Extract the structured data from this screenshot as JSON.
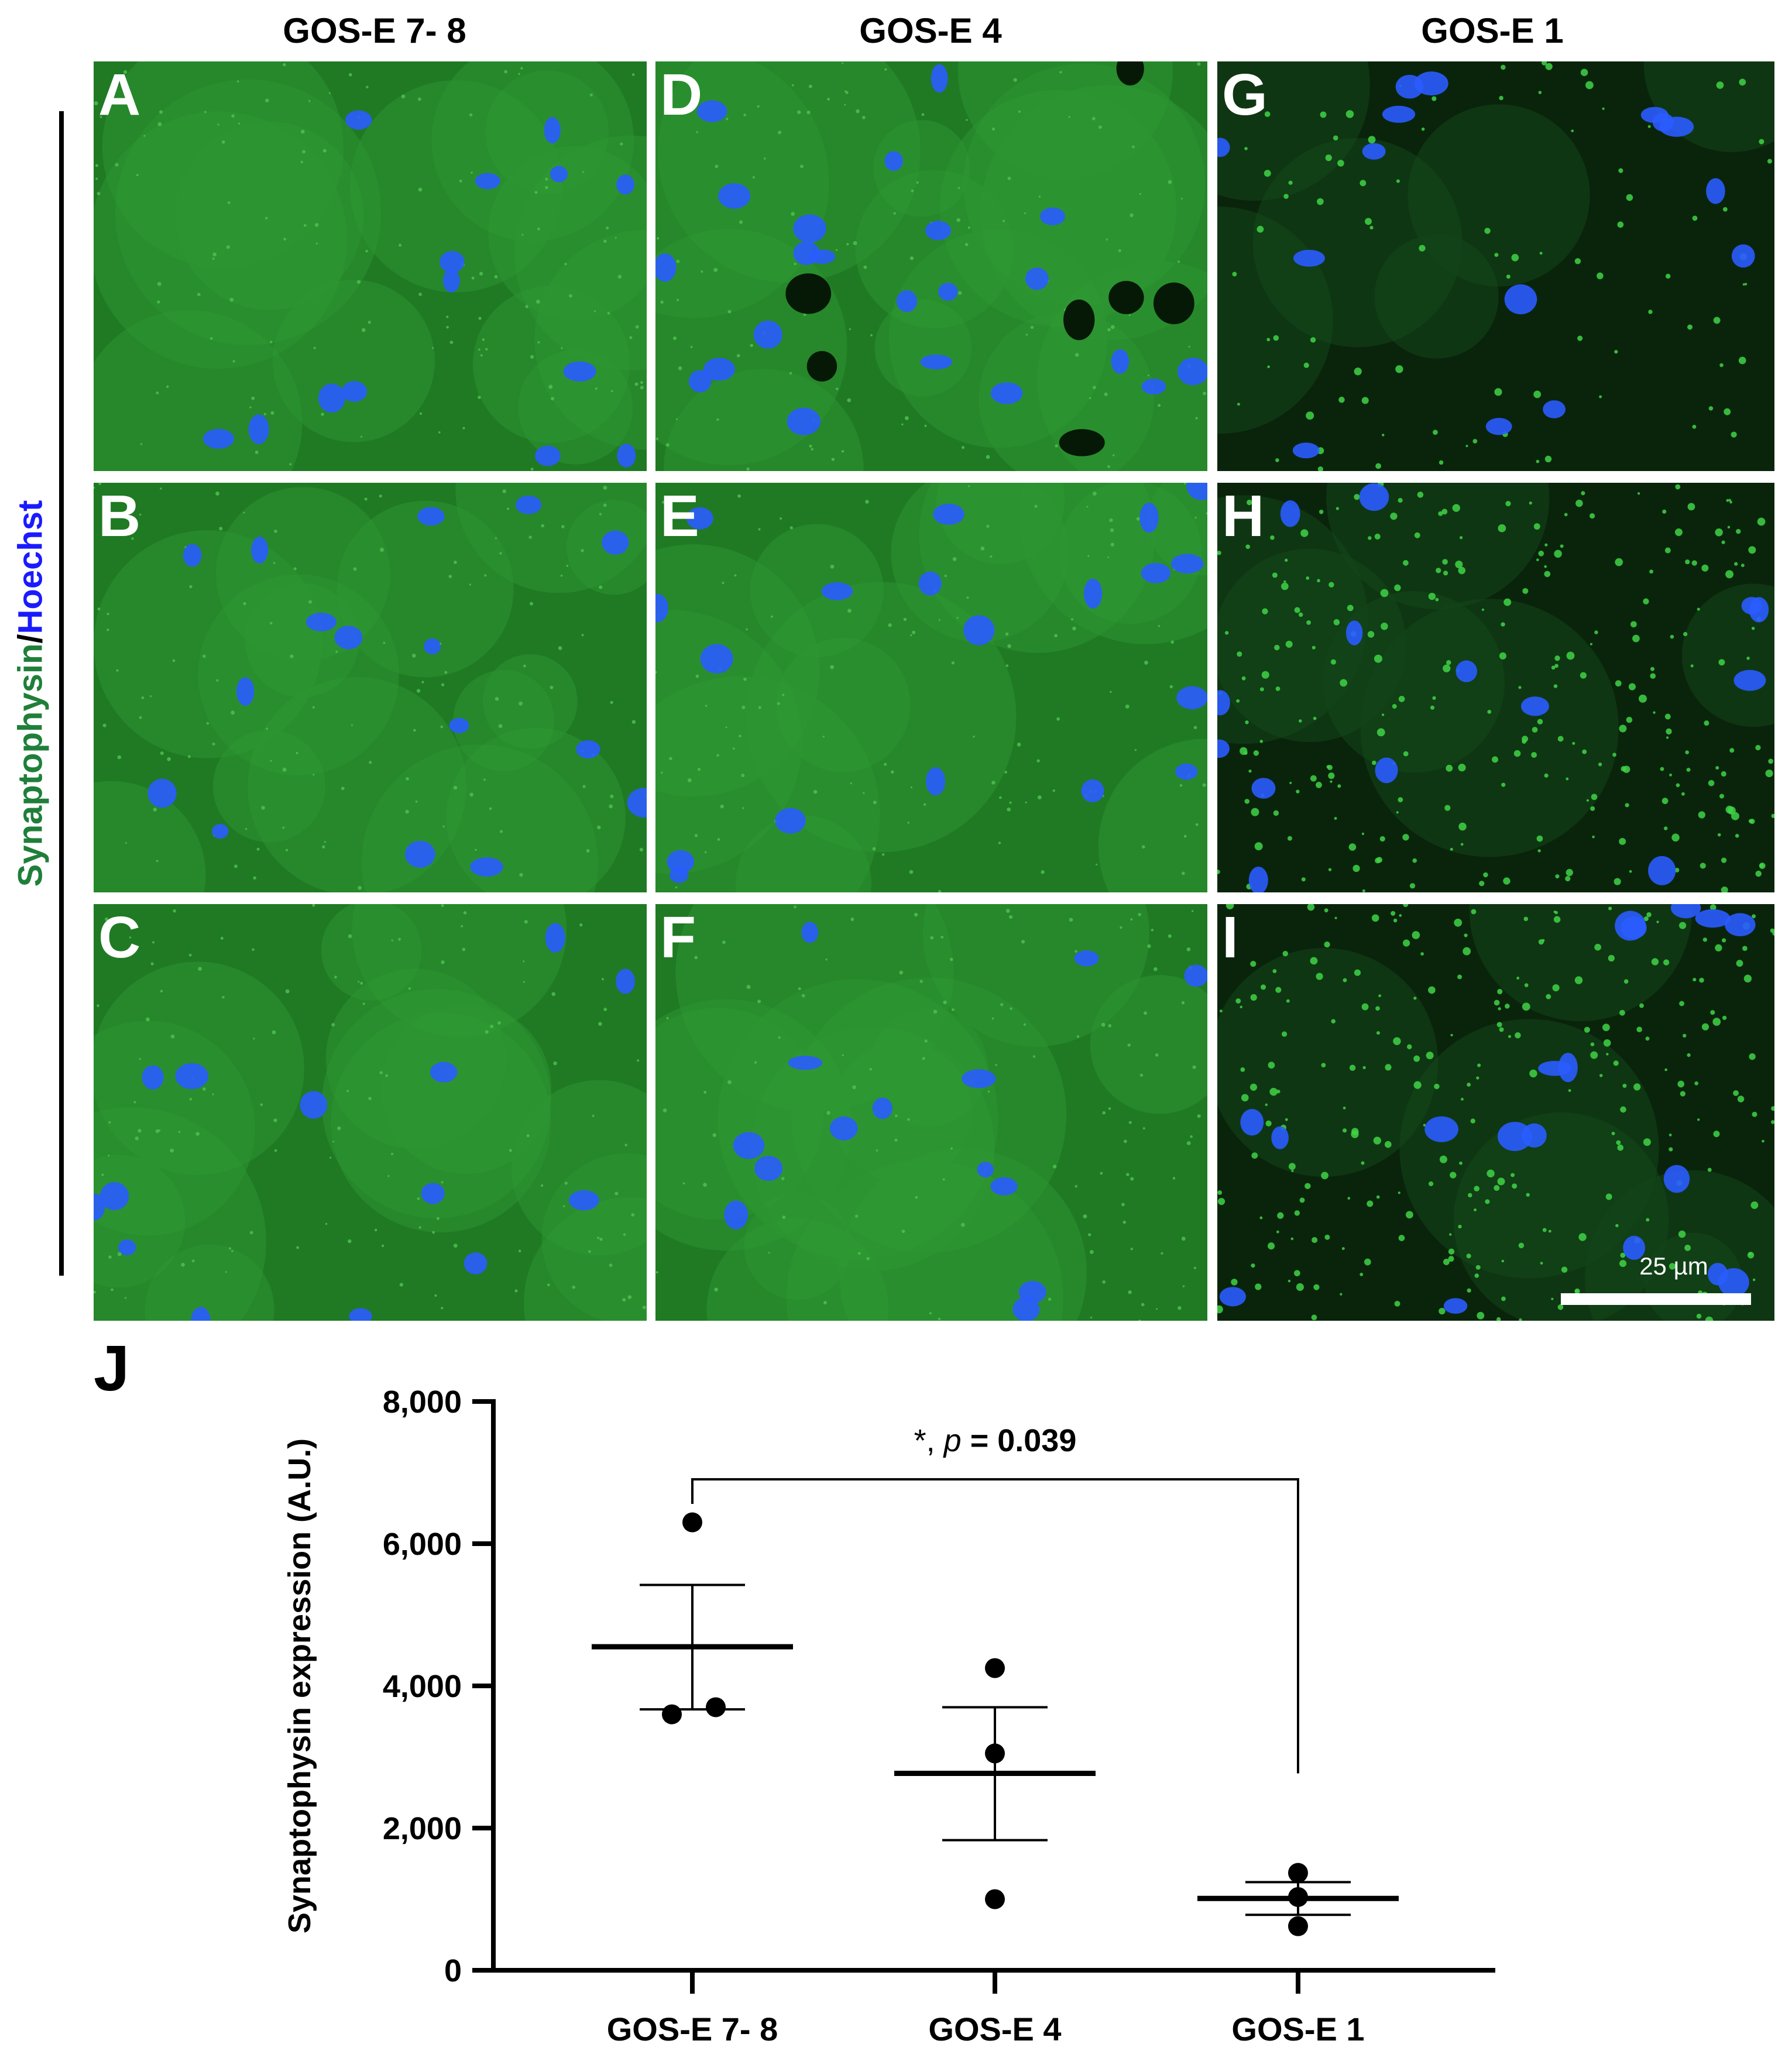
{
  "figure": {
    "column_headers": [
      "GOS-E 7- 8",
      "GOS-E 4",
      "GOS-E 1"
    ],
    "stain_label": {
      "part1": "Synaptophysin",
      "separator": "/",
      "part2": "Hoechst",
      "part1_color": "#1f7f3a",
      "part2_color": "#1a1aff"
    },
    "scale_bar_label": "25 µm",
    "panel_j_letter": "J",
    "colors": {
      "synaptophysin_green": "#2f9a34",
      "hoechst_blue": "#2a5cff",
      "background": "#ffffff"
    },
    "panels": [
      {
        "letter": "A",
        "group": "GOS-E 7- 8",
        "pattern": "diffuse"
      },
      {
        "letter": "B",
        "group": "GOS-E 7- 8",
        "pattern": "diffuse"
      },
      {
        "letter": "C",
        "group": "GOS-E 7- 8",
        "pattern": "diffuse"
      },
      {
        "letter": "D",
        "group": "GOS-E 4",
        "pattern": "diffuse"
      },
      {
        "letter": "E",
        "group": "GOS-E 4",
        "pattern": "diffuse"
      },
      {
        "letter": "F",
        "group": "GOS-E 4",
        "pattern": "diffuse"
      },
      {
        "letter": "G",
        "group": "GOS-E 1",
        "pattern": "punctate-sparse"
      },
      {
        "letter": "H",
        "group": "GOS-E 1",
        "pattern": "punctate"
      },
      {
        "letter": "I",
        "group": "GOS-E 1",
        "pattern": "punctate"
      }
    ]
  },
  "chart_data": {
    "type": "scatter",
    "title": "",
    "xlabel": "",
    "ylabel": "Synaptophysin expression (A.U.)",
    "categories": [
      "GOS-E 7- 8",
      "GOS-E 4",
      "GOS-E 1"
    ],
    "ylim": [
      0,
      8000
    ],
    "yticks": [
      0,
      2000,
      4000,
      6000,
      8000
    ],
    "ytick_labels": [
      "0",
      "2,000",
      "4,000",
      "6,000",
      "8,000"
    ],
    "groups": [
      {
        "name": "GOS-E 7- 8",
        "points": [
          6300,
          3600,
          3700
        ],
        "mean": 4550,
        "sem_low": 3670,
        "sem_high": 5420
      },
      {
        "name": "GOS-E 4",
        "points": [
          4250,
          3050,
          1000
        ],
        "mean": 2770,
        "sem_low": 1830,
        "sem_high": 3700
      },
      {
        "name": "GOS-E 1",
        "points": [
          1370,
          1030,
          620
        ],
        "mean": 1010,
        "sem_low": 780,
        "sem_high": 1240
      }
    ],
    "significance": {
      "from": "GOS-E 7- 8",
      "to": "GOS-E 1",
      "prefix": "*, ",
      "p_symbol": "p",
      "p_value_text": " = 0.039"
    },
    "grid": false
  }
}
